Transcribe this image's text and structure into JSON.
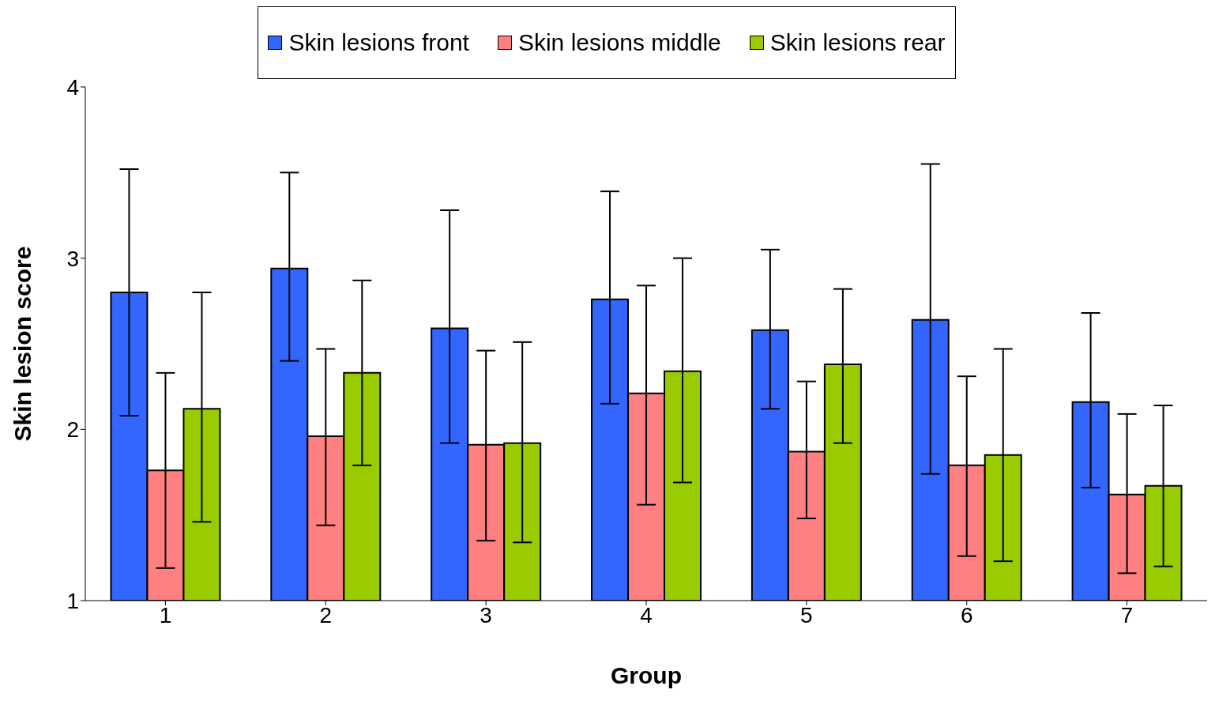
{
  "chart_data": {
    "type": "bar",
    "xlabel": "Group",
    "ylabel": "Skin lesion score",
    "categories": [
      "1",
      "2",
      "3",
      "4",
      "5",
      "6",
      "7"
    ],
    "series": [
      {
        "name": "Skin lesions front",
        "color": "#3366ff",
        "values": [
          2.8,
          2.94,
          2.59,
          2.76,
          2.58,
          2.64,
          2.16
        ],
        "errors": [
          [
            2.08,
            3.52
          ],
          [
            2.4,
            3.5
          ],
          [
            1.92,
            3.28
          ],
          [
            2.15,
            3.39
          ],
          [
            2.12,
            3.05
          ],
          [
            1.74,
            3.55
          ],
          [
            1.66,
            2.68
          ]
        ]
      },
      {
        "name": "Skin lesions middle",
        "color": "#ff8080",
        "values": [
          1.76,
          1.96,
          1.91,
          2.21,
          1.87,
          1.79,
          1.62
        ],
        "errors": [
          [
            1.19,
            2.33
          ],
          [
            1.44,
            2.47
          ],
          [
            1.35,
            2.46
          ],
          [
            1.56,
            2.84
          ],
          [
            1.48,
            2.28
          ],
          [
            1.26,
            2.31
          ],
          [
            1.16,
            2.09
          ]
        ]
      },
      {
        "name": "Skin lesions rear",
        "color": "#99cc00",
        "values": [
          2.12,
          2.33,
          1.92,
          2.34,
          2.38,
          1.85,
          1.67
        ],
        "errors": [
          [
            1.46,
            2.8
          ],
          [
            1.79,
            2.87
          ],
          [
            1.34,
            2.51
          ],
          [
            1.69,
            3.0
          ],
          [
            1.92,
            2.82
          ],
          [
            1.23,
            2.47
          ],
          [
            1.2,
            2.14
          ]
        ]
      }
    ],
    "ylim": [
      1,
      4
    ],
    "yticks": [
      1,
      2,
      3,
      4
    ],
    "grid": false,
    "legend": "top"
  }
}
